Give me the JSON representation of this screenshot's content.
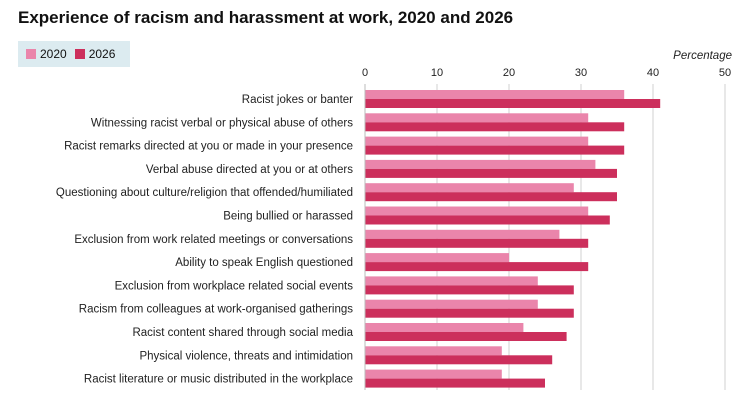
{
  "colors": {
    "s2020": "#ea85ab",
    "s2026": "#cc2f5c",
    "grid": "#d0d0d0",
    "text": "#222222"
  },
  "chart_data": {
    "type": "bar",
    "orientation": "horizontal",
    "title": "Experience of racism and harassment at work, 2020 and 2026",
    "xlabel": "Percentage",
    "xlim": [
      0,
      50
    ],
    "xticks": [
      0,
      10,
      20,
      30,
      40,
      50
    ],
    "grid": true,
    "legend_position": "top-left",
    "categories": [
      "Racist jokes or banter",
      "Witnessing racist verbal or physical abuse of others",
      "Racist remarks directed at you or made in your presence",
      "Verbal abuse directed at you or at others",
      "Questioning about culture/religion that offended/humiliated",
      "Being bullied or harassed",
      "Exclusion from work related meetings or conversations",
      "Ability to speak English questioned",
      "Exclusion from workplace related social events",
      "Racism from colleagues at work-organised gatherings",
      "Racist content shared through social media",
      "Physical violence, threats and intimidation",
      "Racist literature or music distributed in the workplace"
    ],
    "series": [
      {
        "name": "2020",
        "values": [
          36,
          31,
          31,
          32,
          29,
          31,
          27,
          20,
          24,
          24,
          22,
          19,
          19
        ]
      },
      {
        "name": "2026",
        "values": [
          41,
          36,
          36,
          35,
          35,
          34,
          31,
          31,
          29,
          29,
          28,
          26,
          25
        ]
      }
    ]
  }
}
